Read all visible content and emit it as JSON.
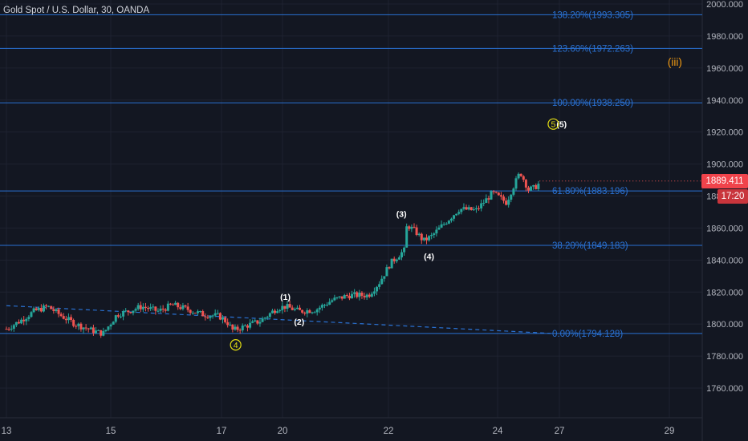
{
  "header": {
    "title": "Gold Spot / U.S. Dollar, 30, OANDA"
  },
  "colors": {
    "background": "#131722",
    "grid": "#1e2230",
    "axis_text": "#b2b5be",
    "fib_line": "#2a72d4",
    "fib_text": "#2a72d4",
    "trendline": "#2a72d4",
    "up_candle": "#26a69a",
    "down_candle": "#ef5350",
    "wave_label": "#ffffff",
    "circle_label": "#e6e012",
    "iii_label": "#f39c12",
    "price_badge": "#f0434b"
  },
  "price_axis": {
    "visible_badge_value": "1889.411",
    "countdown": "17:20"
  },
  "chart_data": {
    "type": "candlestick",
    "title": "Gold Spot / U.S. Dollar, 30, OANDA",
    "xlabel": "",
    "ylabel": "",
    "ylim": [
      1745,
      2002
    ],
    "y_ticks": [
      "2000.000",
      "1980.000",
      "1960.000",
      "1940.000",
      "1920.000",
      "1900.000",
      "1880.000",
      "1860.000",
      "1840.000",
      "1820.000",
      "1800.000",
      "1780.000",
      "1760.000"
    ],
    "y_tick_values": [
      2000,
      1980,
      1960,
      1940,
      1920,
      1900,
      1880,
      1860,
      1840,
      1820,
      1800,
      1780,
      1760
    ],
    "x_ticks": [
      "13",
      "15",
      "17",
      "20",
      "22",
      "24",
      "27",
      "29"
    ],
    "x_tick_positions": [
      0,
      2,
      4,
      5,
      7,
      9,
      10,
      12
    ],
    "x_domain": [
      0,
      13.3
    ],
    "price_path": [
      [
        0.0,
        1797
      ],
      [
        0.25,
        1802
      ],
      [
        0.5,
        1808
      ],
      [
        0.75,
        1811
      ],
      [
        1.0,
        1805
      ],
      [
        1.25,
        1800
      ],
      [
        1.55,
        1796
      ],
      [
        1.75,
        1794
      ],
      [
        2.0,
        1806
      ],
      [
        2.2,
        1808
      ],
      [
        2.45,
        1811
      ],
      [
        2.75,
        1808
      ],
      [
        3.0,
        1812
      ],
      [
        3.3,
        1809
      ],
      [
        3.55,
        1806
      ],
      [
        3.85,
        1805
      ],
      [
        4.0,
        1801
      ],
      [
        4.1,
        1796
      ],
      [
        4.35,
        1799
      ],
      [
        4.6,
        1802
      ],
      [
        4.9,
        1810
      ],
      [
        5.05,
        1811
      ],
      [
        5.3,
        1808
      ],
      [
        5.6,
        1809
      ],
      [
        5.9,
        1815
      ],
      [
        6.2,
        1818
      ],
      [
        6.55,
        1818
      ],
      [
        6.75,
        1826
      ],
      [
        6.95,
        1838
      ],
      [
        7.1,
        1843
      ],
      [
        7.2,
        1846
      ],
      [
        7.25,
        1862
      ],
      [
        7.4,
        1858
      ],
      [
        7.55,
        1852
      ],
      [
        7.7,
        1855
      ],
      [
        7.9,
        1862
      ],
      [
        8.2,
        1872
      ],
      [
        8.5,
        1871
      ],
      [
        8.8,
        1882
      ],
      [
        9.05,
        1876
      ],
      [
        9.15,
        1884
      ],
      [
        9.3,
        1895
      ],
      [
        9.45,
        1884
      ],
      [
        9.55,
        1885
      ],
      [
        9.65,
        1888
      ]
    ],
    "fib_levels": [
      {
        "ratio": "138.20%",
        "price": 1993.305,
        "label": "138.20%(1993.305)"
      },
      {
        "ratio": "123.60%",
        "price": 1972.263,
        "label": "123.60%(1972.263)"
      },
      {
        "ratio": "100.00%",
        "price": 1938.25,
        "label": "100.00%(1938.250)"
      },
      {
        "ratio": "61.80%",
        "price": 1883.196,
        "label": "61.80%(1883.196)"
      },
      {
        "ratio": "38.20%",
        "price": 1849.183,
        "label": "38.20%(1849.183)"
      },
      {
        "ratio": "0.00%",
        "price": 1794.128,
        "label": "0.00%(1794.128)"
      }
    ],
    "trendline": {
      "from": [
        0.0,
        1811.5
      ],
      "to": [
        10.0,
        1794.2
      ]
    },
    "wave_labels": [
      {
        "text": "(1)",
        "x": 5.05,
        "y": 1817,
        "style": "plain"
      },
      {
        "text": "(2)",
        "x": 5.3,
        "y": 1801.5,
        "style": "plain"
      },
      {
        "text": "(3)",
        "x": 7.15,
        "y": 1869,
        "style": "plain"
      },
      {
        "text": "(4)",
        "x": 7.65,
        "y": 1842.5,
        "style": "plain"
      },
      {
        "text": "(5)",
        "x": 10.05,
        "y": 1925,
        "style": "plain"
      },
      {
        "text": "5",
        "x": 9.9,
        "y": 1925,
        "style": "circle"
      },
      {
        "text": "4",
        "x": 4.15,
        "y": 1787,
        "style": "circle"
      },
      {
        "text": "(iii)",
        "x": 12.1,
        "y": 1964,
        "style": "orange"
      }
    ],
    "last_price": 1889.411
  }
}
